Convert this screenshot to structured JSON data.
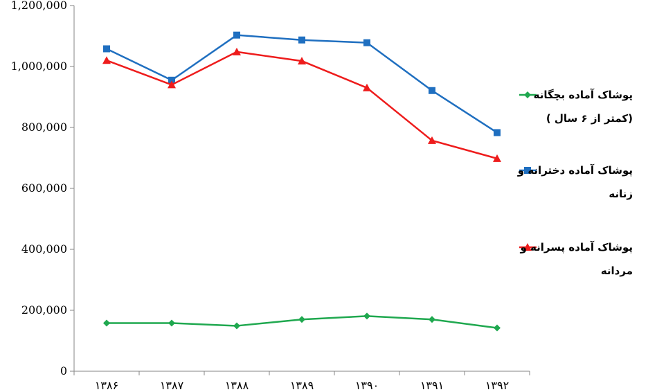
{
  "chart_data": {
    "type": "line",
    "title": "",
    "xlabel": "",
    "ylabel": "",
    "categories": [
      "۱۳۸۶",
      "۱۳۸۷",
      "۱۳۸۸",
      "۱۳۸۹",
      "۱۳۹۰",
      "۱۳۹۱",
      "۱۳۹۲"
    ],
    "ylim": [
      0,
      1200000
    ],
    "yticks": [
      0,
      200000,
      400000,
      600000,
      800000,
      1000000,
      1200000
    ],
    "ytick_labels": [
      "0",
      "200,000",
      "400,000",
      "600,000",
      "800,000",
      "1,000,000",
      "1,200,000"
    ],
    "grid": false,
    "legend_position": "right",
    "series": [
      {
        "name": "پوشاک آماده بچگانه (کمتر از ۶ سال )",
        "legend_lines": [
          "پوشاک آماده بچگانه",
          "(کمتر از ۶ سال )"
        ],
        "color": "#1fa84f",
        "marker": "diamond",
        "values": [
          158000,
          158000,
          149000,
          170000,
          181000,
          170000,
          142000
        ]
      },
      {
        "name": "پوشاک آماده دخترانه و زنانه",
        "legend_lines": [
          "پوشاک آماده دخترانه و",
          "زنانه"
        ],
        "color": "#1f6fc0",
        "marker": "square",
        "values": [
          1058000,
          955000,
          1103000,
          1087000,
          1078000,
          921000,
          783000
        ]
      },
      {
        "name": "پوشاک آماده پسرانه و مردانه",
        "legend_lines": [
          "پوشاک آماده پسرانه و",
          "مردانه"
        ],
        "color": "#ee1c1c",
        "marker": "triangle",
        "values": [
          1020000,
          940000,
          1048000,
          1018000,
          930000,
          757000,
          698000
        ]
      }
    ]
  }
}
